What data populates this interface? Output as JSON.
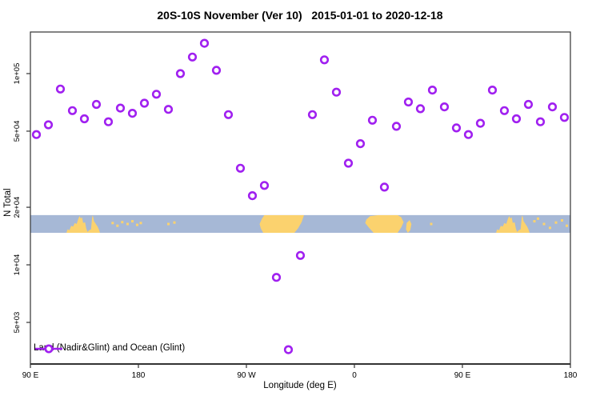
{
  "chart_data": {
    "type": "scatter",
    "title": "20S-10S November (Ver 10)   2015-01-01 to 2020-12-18",
    "xlabel": "Longitude (deg E)",
    "ylabel": "N Total",
    "yscale": "log",
    "xlim": [
      90,
      540
    ],
    "ylim": [
      3030,
      165000
    ],
    "x_ticks": [
      {
        "pos": 90,
        "label": "90 E"
      },
      {
        "pos": 180,
        "label": "180"
      },
      {
        "pos": 270,
        "label": "90 W"
      },
      {
        "pos": 360,
        "label": "0"
      },
      {
        "pos": 450,
        "label": "90 E"
      },
      {
        "pos": 540,
        "label": "180"
      }
    ],
    "y_ticks": [
      {
        "value": 100000,
        "label": "1e+05"
      },
      {
        "value": 50000,
        "label": "5e+04"
      },
      {
        "value": 20000,
        "label": "2e+04"
      },
      {
        "value": 10000,
        "label": "1e+04"
      },
      {
        "value": 5000,
        "label": "5e+03"
      }
    ],
    "legend": {
      "label": "Land (Nadir&Glint) and Ocean (Glint)",
      "position": "bottom-left"
    },
    "colors": {
      "marker": "#A020F0",
      "ocean": "#A6B8D6",
      "land": "#FBD26E",
      "axis": "#333333",
      "text": "#000000"
    },
    "series": [
      {
        "name": "Land (Nadir&Glint) and Ocean (Glint)",
        "marker": "open-circle",
        "x": [
          95,
          105,
          115,
          125,
          135,
          145,
          155,
          165,
          175,
          185,
          195,
          205,
          215,
          225,
          235,
          245,
          255,
          265,
          275,
          285,
          295,
          305,
          315,
          325,
          335,
          345,
          355,
          365,
          375,
          385,
          395,
          405,
          415,
          425,
          435,
          445,
          455,
          465,
          475,
          485,
          495,
          505,
          515,
          525,
          535
        ],
        "y": [
          48000,
          54000,
          83000,
          64000,
          58000,
          69000,
          56000,
          66000,
          62000,
          70000,
          78000,
          65000,
          100000,
          122000,
          144000,
          104000,
          61000,
          32000,
          23000,
          26000,
          8600,
          3600,
          11200,
          61000,
          118000,
          80000,
          34000,
          43000,
          57000,
          25500,
          53000,
          71000,
          65500,
          82000,
          67000,
          52000,
          48000,
          55000,
          82000,
          64000,
          58000,
          69000,
          56000,
          67000,
          59000
        ]
      }
    ],
    "map_band": {
      "top_value": 18200,
      "bottom_value": 14700,
      "land_polygons": [
        {
          "name": "australia",
          "points": [
            [
              120,
              1
            ],
            [
              121,
              0.8
            ],
            [
              122.5,
              0.85
            ],
            [
              124,
              0.6
            ],
            [
              125.5,
              0.65
            ],
            [
              127,
              0.45
            ],
            [
              128.5,
              0.5
            ],
            [
              130,
              0.2
            ],
            [
              131,
              0.05
            ],
            [
              132,
              0.2
            ],
            [
              133,
              0.12
            ],
            [
              134,
              0.45
            ],
            [
              135.5,
              0.4
            ],
            [
              136.5,
              0.75
            ],
            [
              137.5,
              0.95
            ],
            [
              139,
              0.85
            ],
            [
              140.5,
              0.8
            ],
            [
              141.3,
              0.2
            ],
            [
              141.8,
              0.02
            ],
            [
              142.3,
              0.1
            ],
            [
              143,
              0.35
            ],
            [
              144,
              0.45
            ],
            [
              145,
              0.55
            ],
            [
              146,
              0.65
            ],
            [
              147,
              0.8
            ],
            [
              148,
              1
            ]
          ]
        },
        {
          "name": "south-america",
          "points": [
            [
              285,
              0
            ],
            [
              318,
              0
            ],
            [
              316,
              0.4
            ],
            [
              313,
              0.75
            ],
            [
              310,
              1
            ],
            [
              284,
              1
            ],
            [
              282,
              0.75
            ],
            [
              281,
              0.5
            ],
            [
              283,
              0.2
            ]
          ]
        },
        {
          "name": "africa",
          "points": [
            [
              380,
              0
            ],
            [
              396,
              0
            ],
            [
              399,
              0.12
            ],
            [
              401,
              0.4
            ],
            [
              399,
              0.7
            ],
            [
              396,
              1
            ],
            [
              376,
              1
            ],
            [
              372,
              0.7
            ],
            [
              369,
              0.45
            ],
            [
              370,
              0.25
            ],
            [
              373,
              0.06
            ]
          ]
        },
        {
          "name": "madagascar",
          "points": [
            [
              403.5,
              0.45
            ],
            [
              406,
              0.28
            ],
            [
              407.5,
              0.5
            ],
            [
              406.5,
              0.85
            ],
            [
              404.5,
              1
            ],
            [
              403,
              0.8
            ]
          ]
        },
        {
          "name": "australia-wrap",
          "points": [
            [
              478,
              1
            ],
            [
              479,
              0.8
            ],
            [
              480.5,
              0.85
            ],
            [
              482,
              0.6
            ],
            [
              483.5,
              0.65
            ],
            [
              485,
              0.45
            ],
            [
              486.5,
              0.5
            ],
            [
              488,
              0.2
            ],
            [
              489,
              0.05
            ],
            [
              490,
              0.2
            ],
            [
              491,
              0.12
            ],
            [
              492,
              0.45
            ],
            [
              493.5,
              0.4
            ],
            [
              494.5,
              0.75
            ],
            [
              495.5,
              0.95
            ],
            [
              497,
              0.85
            ],
            [
              498.5,
              0.8
            ],
            [
              499.3,
              0.2
            ],
            [
              499.8,
              0.02
            ],
            [
              500.3,
              0.1
            ],
            [
              501,
              0.35
            ],
            [
              502,
              0.45
            ],
            [
              503,
              0.55
            ],
            [
              504,
              0.65
            ],
            [
              505,
              0.8
            ],
            [
              506,
              1
            ]
          ]
        }
      ],
      "island_specks": [
        [
          158.5,
          0.45
        ],
        [
          162.5,
          0.6
        ],
        [
          166.5,
          0.4
        ],
        [
          171,
          0.5
        ],
        [
          175,
          0.35
        ],
        [
          179,
          0.55
        ],
        [
          182,
          0.45
        ],
        [
          205,
          0.5
        ],
        [
          210,
          0.42
        ],
        [
          424,
          0.5
        ],
        [
          510,
          0.35
        ],
        [
          513,
          0.2
        ],
        [
          518,
          0.5
        ],
        [
          523,
          0.72
        ],
        [
          528,
          0.42
        ],
        [
          533,
          0.3
        ],
        [
          537,
          0.6
        ]
      ]
    }
  }
}
